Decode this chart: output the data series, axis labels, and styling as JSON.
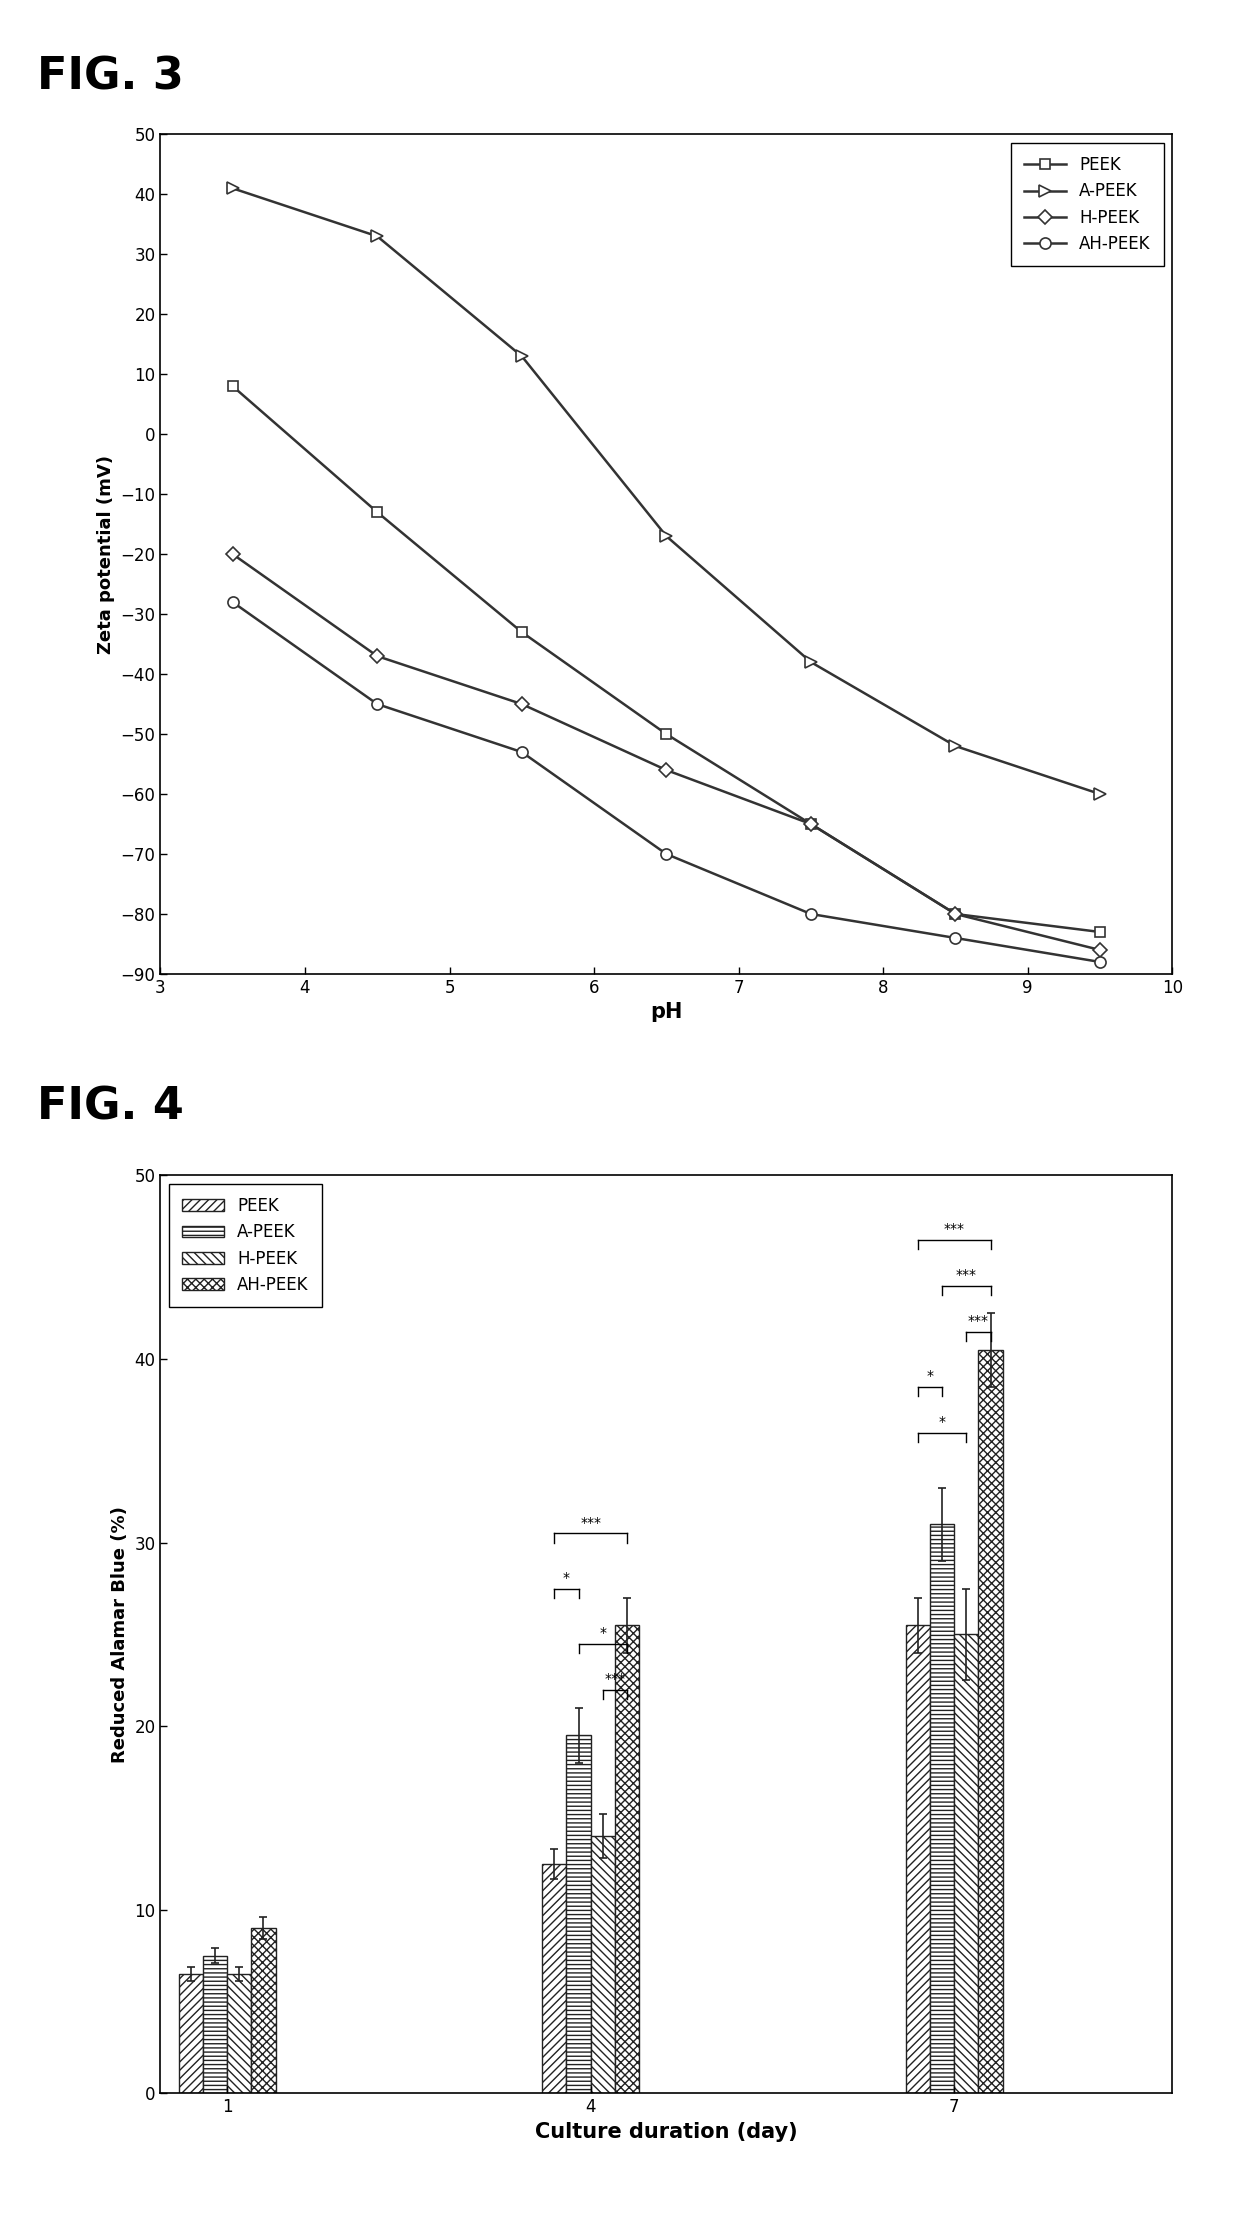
{
  "fig3_title": "FIG. 3",
  "fig4_title": "FIG. 4",
  "peek_ph": [
    3.5,
    4.5,
    5.5,
    6.5,
    7.5,
    8.5,
    9.5
  ],
  "peek_zeta": [
    8,
    -13,
    -33,
    -50,
    -65,
    -80,
    -83
  ],
  "apeek_ph": [
    3.5,
    4.5,
    5.5,
    6.5,
    7.5,
    8.5,
    9.5
  ],
  "apeek_zeta": [
    41,
    33,
    13,
    -17,
    -38,
    -52,
    -60
  ],
  "hpeek_ph": [
    3.5,
    4.5,
    5.5,
    6.5,
    7.5,
    8.5,
    9.5
  ],
  "hpeek_zeta": [
    -20,
    -37,
    -45,
    -56,
    -65,
    -80,
    -86
  ],
  "ahpeek_ph": [
    3.5,
    4.5,
    5.5,
    6.5,
    7.5,
    8.5,
    9.5
  ],
  "ahpeek_zeta": [
    -28,
    -45,
    -53,
    -70,
    -80,
    -84,
    -88
  ],
  "bar_days": [
    1,
    4,
    7
  ],
  "bar_peek": [
    6.5,
    12.5,
    25.5
  ],
  "bar_apeek": [
    7.5,
    19.5,
    31.0
  ],
  "bar_hpeek": [
    6.5,
    14.0,
    25.0
  ],
  "bar_ahpeek": [
    9.0,
    25.5,
    40.5
  ],
  "bar_peek_err": [
    0.4,
    0.8,
    1.5
  ],
  "bar_apeek_err": [
    0.4,
    1.5,
    2.0
  ],
  "bar_hpeek_err": [
    0.4,
    1.2,
    2.5
  ],
  "bar_ahpeek_err": [
    0.6,
    1.5,
    2.0
  ],
  "line_color": "#333333",
  "bg_color": "#ffffff",
  "fig3_xlabel": "pH",
  "fig3_ylabel": "Zeta potential (mV)",
  "fig3_xlim": [
    3,
    10
  ],
  "fig3_ylim": [
    -90,
    50
  ],
  "fig3_xticks": [
    3,
    4,
    5,
    6,
    7,
    8,
    9,
    10
  ],
  "fig3_yticks": [
    -90,
    -80,
    -70,
    -60,
    -50,
    -40,
    -30,
    -20,
    -10,
    0,
    10,
    20,
    30,
    40,
    50
  ],
  "fig4_xlabel": "Culture duration (day)",
  "fig4_ylabel": "Reduced Alamar Blue (%)",
  "fig4_ylim": [
    0,
    50
  ],
  "fig4_yticks": [
    0,
    10,
    20,
    30,
    40,
    50
  ]
}
